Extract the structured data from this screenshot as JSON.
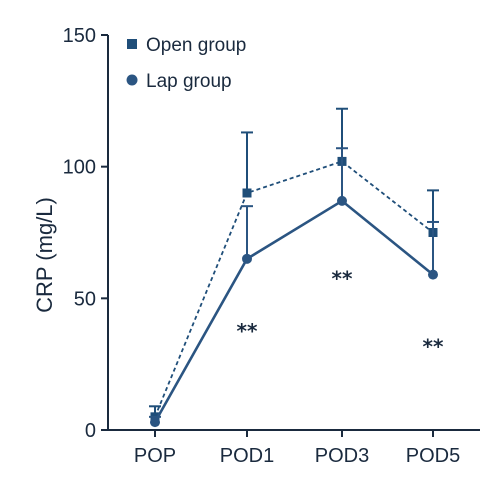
{
  "chart_data": {
    "type": "line",
    "title": "",
    "xlabel": "",
    "ylabel": "CRP (mg/L)",
    "categories": [
      "POP",
      "POD1",
      "POD3",
      "POD5"
    ],
    "ylim": [
      0,
      150
    ],
    "yticks": [
      0,
      50,
      100,
      150
    ],
    "grid": false,
    "legend_position": "top-left",
    "series": [
      {
        "name": "Open group",
        "values": [
          5,
          90,
          102,
          75
        ],
        "error": [
          4,
          23,
          20,
          16
        ],
        "line_style": "dashed",
        "marker": "square",
        "color": "#1f4e79"
      },
      {
        "name": "Lap group",
        "values": [
          3,
          65,
          87,
          59
        ],
        "error": [
          2,
          20,
          20,
          20
        ],
        "line_style": "solid",
        "marker": "circle",
        "color": "#2b5582"
      }
    ],
    "annotations": [
      {
        "category": "POD1",
        "text": "**",
        "y": 38
      },
      {
        "category": "POD3",
        "text": "**",
        "y": 58
      },
      {
        "category": "POD5",
        "text": "**",
        "y": 32
      }
    ]
  }
}
